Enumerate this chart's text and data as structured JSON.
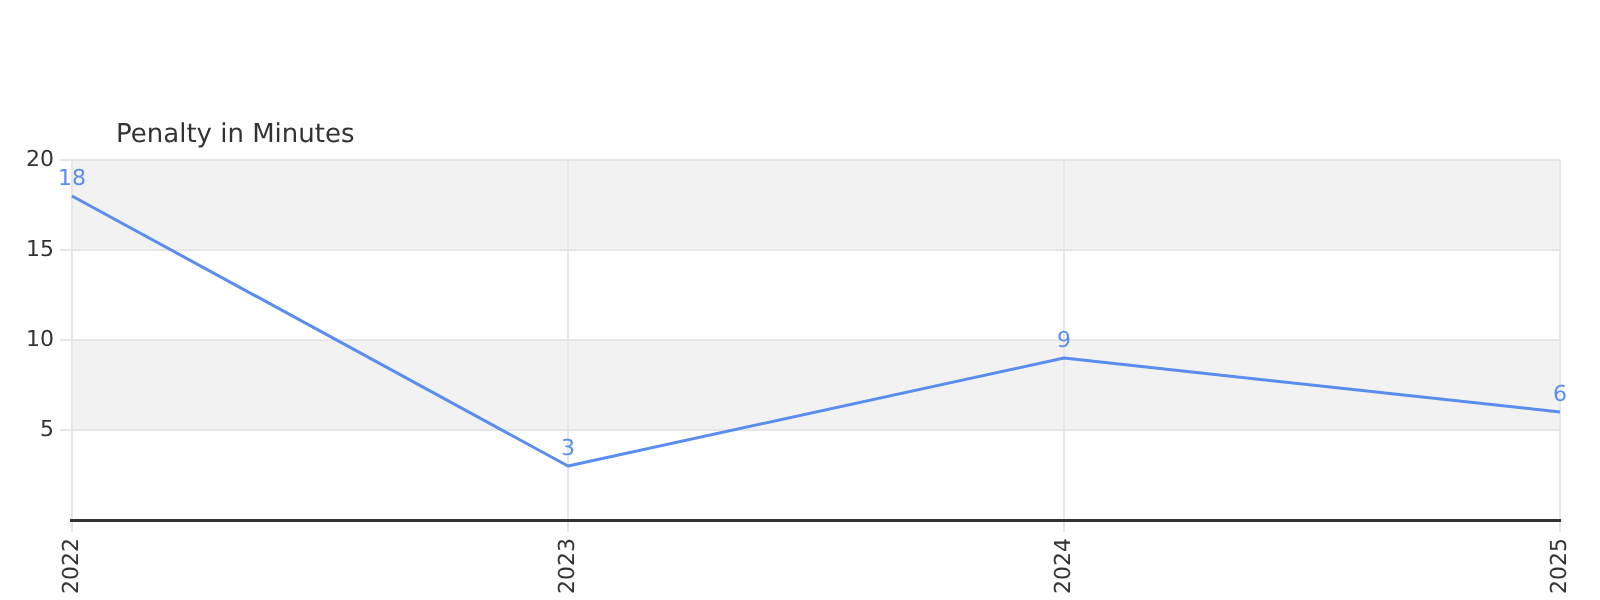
{
  "chart_data": {
    "type": "line",
    "ylabel": "Penalty in Minutes",
    "categories": [
      "2022",
      "2023",
      "2024",
      "2025"
    ],
    "series": [
      {
        "color": "#5b8def",
        "values": [
          18,
          3,
          9,
          6
        ]
      }
    ],
    "ylim": [
      0,
      20
    ],
    "yticks": [
      5,
      10,
      15,
      20
    ],
    "grid": true,
    "legend": false,
    "marker": "none",
    "line_style": "solid",
    "data_labels": true,
    "bands": [
      {
        "axis": "y",
        "from": 15,
        "to": 20,
        "color": "#f2f2f2"
      },
      {
        "axis": "y",
        "from": 5,
        "to": 10,
        "color": "#f2f2f2"
      }
    ]
  }
}
